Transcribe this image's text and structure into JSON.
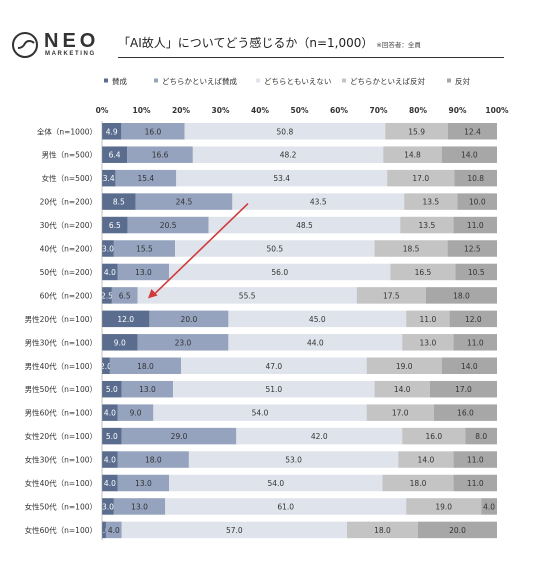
{
  "brand": {
    "name": "NEO",
    "sub": "MARKETING"
  },
  "header": {
    "title": "「AI故人」についてどう感じるか（n=1,000）",
    "note": "※回答者：全員"
  },
  "colors": [
    "#5a6d8e",
    "#95a3bf",
    "#dfe4ec",
    "#c4c4c4",
    "#a7a7a7"
  ],
  "chart_data": {
    "type": "bar",
    "orientation": "horizontal",
    "stacked": "percent",
    "title": "「AI故人」についてどう感じるか（n=1,000）",
    "legend_position": "top",
    "xlim": [
      0,
      100
    ],
    "xticks": [
      "0%",
      "10%",
      "20%",
      "30%",
      "40%",
      "50%",
      "60%",
      "70%",
      "80%",
      "90%",
      "100%"
    ],
    "categories": [
      "全体（n=1000）",
      "男性（n=500）",
      "女性（n=500）",
      "20代（n=200）",
      "30代（n=200）",
      "40代（n=200）",
      "50代（n=200）",
      "60代（n=200）",
      "男性20代（n=100）",
      "男性30代（n=100）",
      "男性40代（n=100）",
      "男性50代（n=100）",
      "男性60代（n=100）",
      "女性20代（n=100）",
      "女性30代（n=100）",
      "女性40代（n=100）",
      "女性50代（n=100）",
      "女性60代（n=100）"
    ],
    "series": [
      {
        "name": "賛成",
        "values": [
          "4.9",
          "6.4",
          "3.4",
          "8.5",
          "6.5",
          "3.0",
          "4.0",
          "2.5",
          "12.0",
          "9.0",
          "2.0",
          "5.0",
          "4.0",
          "5.0",
          "4.0",
          "4.0",
          "3.0",
          "1.0"
        ]
      },
      {
        "name": "どちらかといえば賛成",
        "values": [
          "16.0",
          "16.6",
          "15.4",
          "24.5",
          "20.5",
          "15.5",
          "13.0",
          "6.5",
          "20.0",
          "23.0",
          "18.0",
          "13.0",
          "9.0",
          "29.0",
          "18.0",
          "13.0",
          "13.0",
          "4.0"
        ]
      },
      {
        "name": "どちらともいえない",
        "values": [
          "50.8",
          "48.2",
          "53.4",
          "43.5",
          "48.5",
          "50.5",
          "56.0",
          "55.5",
          "45.0",
          "44.0",
          "47.0",
          "51.0",
          "54.0",
          "42.0",
          "53.0",
          "54.0",
          "61.0",
          "57.0"
        ]
      },
      {
        "name": "どちらかといえば反対",
        "values": [
          "15.9",
          "14.8",
          "17.0",
          "13.5",
          "13.5",
          "18.5",
          "16.5",
          "17.5",
          "11.0",
          "13.0",
          "19.0",
          "14.0",
          "17.0",
          "16.0",
          "14.0",
          "18.0",
          "19.0",
          "18.0"
        ]
      },
      {
        "name": "反対",
        "values": [
          "12.4",
          "14.0",
          "10.8",
          "10.0",
          "11.0",
          "12.5",
          "10.5",
          "18.0",
          "12.0",
          "11.0",
          "14.0",
          "17.0",
          "16.0",
          "8.0",
          "11.0",
          "11.0",
          "4.0",
          "20.0"
        ]
      }
    ],
    "annotations": [
      {
        "type": "arrow",
        "from_category": "20代（n=200）",
        "to_category": "60代（n=200）",
        "color": "#d03a3a"
      }
    ]
  }
}
